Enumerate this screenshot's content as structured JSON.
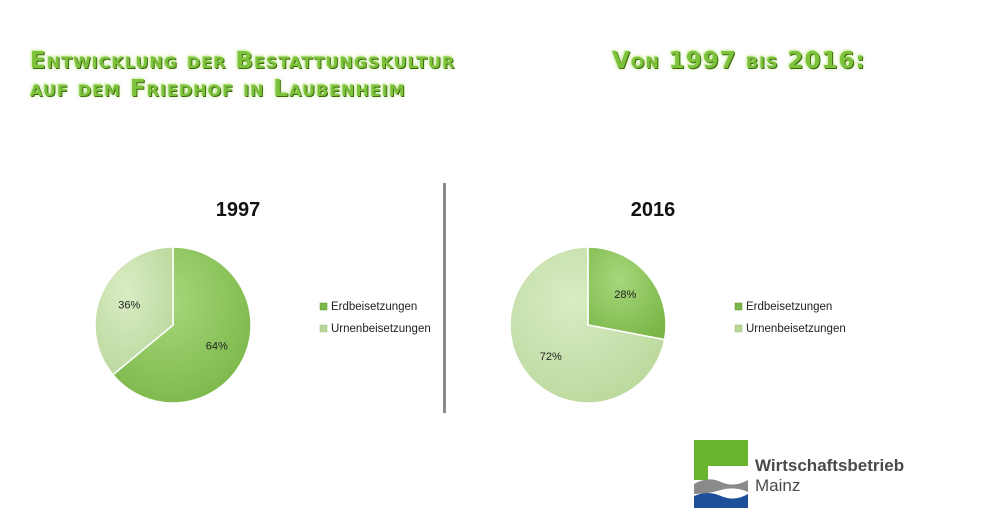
{
  "header": {
    "title_line1": "Entwicklung der Bestattungskultur",
    "title_line2": "auf dem Friedhof in Laubenheim",
    "title_right": "Von 1997 bis 2016:"
  },
  "colors": {
    "erd": "#7ab648",
    "erd_dark": "#5e9a2e",
    "urnen": "#b9d79a",
    "urnen_dark": "#93bb6e"
  },
  "chart_data": [
    {
      "type": "pie",
      "title": "1997",
      "series": [
        {
          "name": "Erdbeisetzungen",
          "value": 64,
          "label": "64%"
        },
        {
          "name": "Urnenbeisetzungen",
          "value": 36,
          "label": "36%"
        }
      ],
      "legend": "right"
    },
    {
      "type": "pie",
      "title": "2016",
      "series": [
        {
          "name": "Erdbeisetzungen",
          "value": 28,
          "label": "28%"
        },
        {
          "name": "Urnenbeisetzungen",
          "value": 72,
          "label": "72%"
        }
      ],
      "legend": "right"
    }
  ],
  "logo": {
    "line1": "Wirtschaftsbetrieb",
    "line2": "Mainz"
  }
}
